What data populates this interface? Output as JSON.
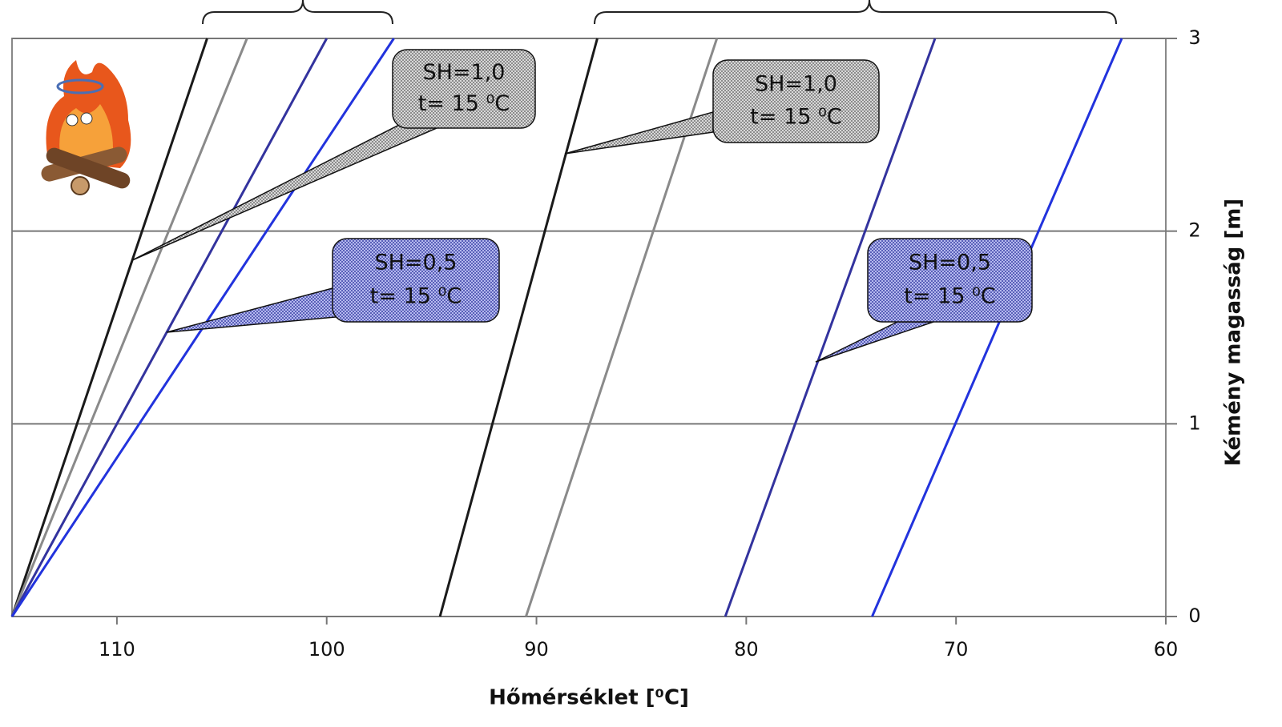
{
  "chart_data": {
    "type": "line",
    "x_label": "Hőmérséklet [⁰C]",
    "y_label": "Kémény magasság [m]",
    "xlim": [
      115,
      60
    ],
    "xticks": [
      110,
      100,
      90,
      80,
      70,
      60
    ],
    "ylim": [
      0,
      3
    ],
    "yticks": [
      0,
      1,
      2,
      3
    ],
    "grid": true,
    "series": [
      {
        "color": "#1a1a1a",
        "x": [
          115,
          105.7
        ],
        "values": [
          0,
          3
        ]
      },
      {
        "color": "#8a8a8a",
        "x": [
          115,
          103.8
        ],
        "values": [
          0,
          3
        ]
      },
      {
        "color": "#33339e",
        "x": [
          115,
          100.0
        ],
        "values": [
          0,
          3
        ]
      },
      {
        "color": "#2233dd",
        "x": [
          115,
          96.8
        ],
        "values": [
          0,
          3
        ]
      },
      {
        "color": "#1a1a1a",
        "x": [
          94.6,
          87.1
        ],
        "values": [
          0,
          3
        ]
      },
      {
        "color": "#8a8a8a",
        "x": [
          90.5,
          81.4
        ],
        "values": [
          0,
          3
        ]
      },
      {
        "color": "#33339e",
        "x": [
          81.0,
          71.0
        ],
        "values": [
          0,
          3
        ]
      },
      {
        "color": "#2233dd",
        "x": [
          74.0,
          62.1
        ],
        "values": [
          0,
          3
        ]
      }
    ],
    "annotations": [
      {
        "lines": [
          "SH=1,0",
          "t= 15 ⁰C"
        ],
        "color": "gray"
      },
      {
        "lines": [
          "SH=1,0",
          "t= 15 ⁰C"
        ],
        "color": "gray"
      },
      {
        "lines": [
          "SH=0,5",
          "t= 15 ⁰C"
        ],
        "color": "blue"
      },
      {
        "lines": [
          "SH=0,5",
          "t= 15 ⁰C"
        ],
        "color": "blue"
      }
    ]
  }
}
